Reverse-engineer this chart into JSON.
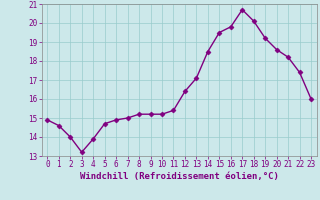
{
  "x": [
    0,
    1,
    2,
    3,
    4,
    5,
    6,
    7,
    8,
    9,
    10,
    11,
    12,
    13,
    14,
    15,
    16,
    17,
    18,
    19,
    20,
    21,
    22,
    23
  ],
  "y": [
    14.9,
    14.6,
    14.0,
    13.2,
    13.9,
    14.7,
    14.9,
    15.0,
    15.2,
    15.2,
    15.2,
    15.4,
    16.4,
    17.1,
    18.5,
    19.5,
    19.8,
    20.7,
    20.1,
    19.2,
    18.6,
    18.2,
    17.4,
    16.0
  ],
  "line_color": "#800080",
  "marker": "D",
  "marker_size": 2.5,
  "bg_color": "#cce8ea",
  "grid_color": "#99cccc",
  "xlabel": "Windchill (Refroidissement éolien,°C)",
  "ylim": [
    13,
    21
  ],
  "xlim_min": -0.5,
  "xlim_max": 23.5,
  "yticks": [
    13,
    14,
    15,
    16,
    17,
    18,
    19,
    20,
    21
  ],
  "xticks": [
    0,
    1,
    2,
    3,
    4,
    5,
    6,
    7,
    8,
    9,
    10,
    11,
    12,
    13,
    14,
    15,
    16,
    17,
    18,
    19,
    20,
    21,
    22,
    23
  ],
  "tick_color": "#800080",
  "tick_fontsize": 5.5,
  "xlabel_fontsize": 6.5,
  "line_width": 1.0,
  "spine_color": "#888888"
}
